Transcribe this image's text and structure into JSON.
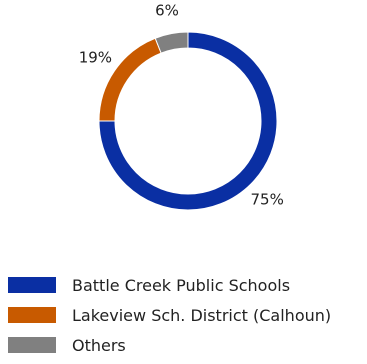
{
  "chart_data": {
    "type": "pie",
    "variant": "donut",
    "categories": [
      "Battle Creek Public Schools",
      "Lakeview Sch. District (Calhoun)",
      "Others"
    ],
    "values": [
      75,
      19,
      6
    ],
    "value_labels": [
      "75%",
      "19%",
      "6%"
    ],
    "colors": [
      "#0a2fa3",
      "#c85a00",
      "#808080"
    ],
    "legend_position": "bottom-left",
    "title": "",
    "start_angle": "top",
    "direction": "clockwise"
  }
}
